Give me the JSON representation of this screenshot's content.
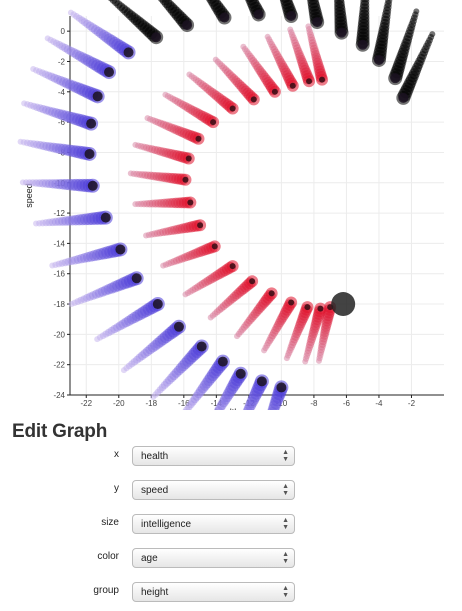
{
  "chart_data": {
    "type": "scatter",
    "xlabel": "health",
    "ylabel": "speed",
    "xlim": [
      -23,
      0
    ],
    "ylim": [
      -24,
      1
    ],
    "x_ticks": [
      "-22",
      "-20",
      "-18",
      "-16",
      "-14",
      "-12",
      "-10",
      "-8",
      "-6",
      "-4",
      "-2"
    ],
    "y_ticks": [
      "0",
      "-2",
      "-4",
      "-6",
      "-8",
      "-10",
      "-12",
      "-14",
      "-16",
      "-18",
      "-20",
      "-22",
      "-24"
    ],
    "grid": true,
    "legend": "none",
    "colors": {
      "outer_arc": "#4a3ad8",
      "inner_arc": "#e0102a",
      "highlight": "#222222"
    },
    "series": [
      {
        "x": [
          -10.0,
          -11.2,
          -12.5,
          -13.6,
          -14.9,
          -16.3,
          -17.6,
          -18.9,
          -19.9,
          -20.8,
          -21.6,
          -21.8,
          -21.7,
          -21.3,
          -20.6,
          -19.4,
          -17.7,
          -15.8,
          -13.5,
          -11.4,
          -9.4,
          -7.8,
          -6.3,
          -5.0,
          -4.0,
          -3.0,
          -2.5
        ],
        "y": [
          -23.5,
          -23.1,
          -22.6,
          -21.8,
          -20.8,
          -19.5,
          -18.0,
          -16.3,
          -14.4,
          -12.3,
          -10.2,
          -8.1,
          -6.1,
          -4.3,
          -2.7,
          -1.4,
          -0.4,
          0.4,
          0.9,
          1.1,
          1.0,
          0.6,
          -0.1,
          -0.9,
          -1.9,
          -3.1,
          -4.4
        ]
      },
      {
        "x": [
          -7.0,
          -7.6,
          -8.4,
          -9.4,
          -10.6,
          -11.8,
          -13.0,
          -14.1,
          -15.0,
          -15.6,
          -15.9,
          -15.7,
          -15.1,
          -14.2,
          -13.0,
          -11.7,
          -10.4,
          -9.3,
          -8.3,
          -7.5
        ],
        "y": [
          -18.2,
          -18.3,
          -18.2,
          -17.9,
          -17.3,
          -16.5,
          -15.5,
          -14.2,
          -12.8,
          -11.3,
          -9.8,
          -8.4,
          -7.1,
          -6.0,
          -5.1,
          -4.5,
          -4.0,
          -3.6,
          -3.3,
          -3.2
        ]
      }
    ],
    "highlight_point": {
      "x": -6.2,
      "y": -18.0
    }
  },
  "form": {
    "heading": "Edit Graph",
    "fields": [
      {
        "label": "x",
        "value": "health"
      },
      {
        "label": "y",
        "value": "speed"
      },
      {
        "label": "size",
        "value": "intelligence"
      },
      {
        "label": "color",
        "value": "age"
      },
      {
        "label": "group",
        "value": "height"
      }
    ]
  }
}
